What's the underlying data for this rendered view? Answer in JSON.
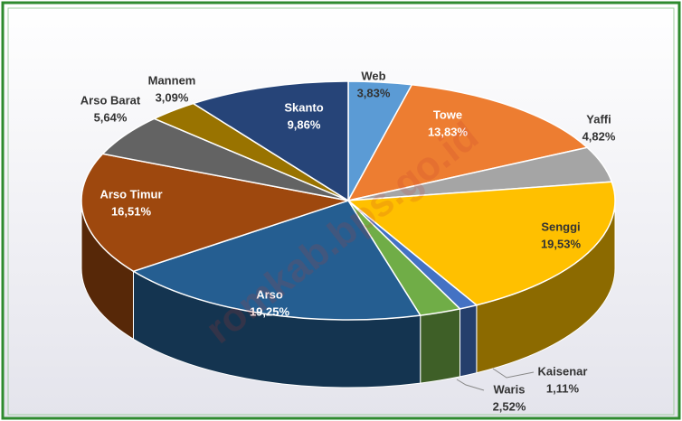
{
  "chart_data": {
    "type": "pie",
    "watermark": "romkab.bps.go.id",
    "categories": [
      "Web",
      "Towe",
      "Yaffi",
      "Senggi",
      "Kaisenar",
      "Waris",
      "Arso",
      "Arso Timur",
      "Arso Barat",
      "Mannem",
      "Skanto"
    ],
    "values": [
      3.83,
      13.83,
      4.82,
      19.53,
      1.11,
      2.52,
      19.25,
      16.51,
      5.64,
      3.09,
      9.86
    ],
    "value_labels": [
      "3,83%",
      "13,83%",
      "4,82%",
      "19,53%",
      "1,11%",
      "2,52%",
      "19,25%",
      "16,51%",
      "5,64%",
      "3,09%",
      "9,86%"
    ],
    "colors": [
      "#5b9bd5",
      "#ed7d31",
      "#a5a5a5",
      "#ffc000",
      "#4472c4",
      "#70ad47",
      "#255e91",
      "#9e480e",
      "#636363",
      "#997300",
      "#264478"
    ]
  }
}
